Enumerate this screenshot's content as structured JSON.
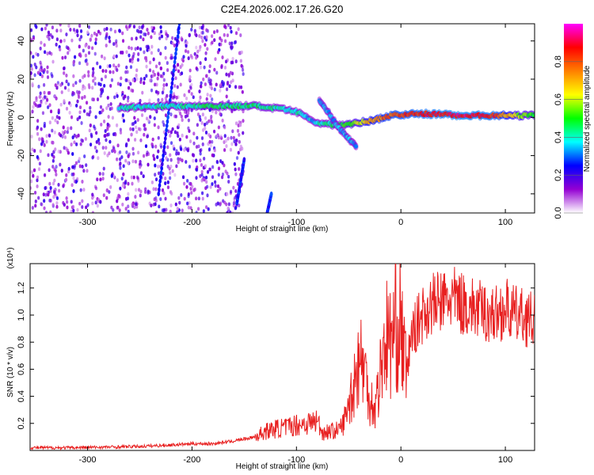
{
  "chart_data": [
    {
      "type": "heatmap",
      "title": "C2E4.2026.002.17.26.G20",
      "xlabel": "Height of straight line (km)",
      "ylabel": "Frequency (Hz)",
      "xlim": [
        -355,
        128
      ],
      "ylim": [
        -50,
        49
      ],
      "x_ticks": [
        -300,
        -200,
        -100,
        0,
        100
      ],
      "x_tick_labels": [
        "-300",
        "-200",
        "-100",
        "0",
        "100"
      ],
      "y_ticks": [
        -40,
        -20,
        0,
        20,
        40
      ],
      "y_tick_labels": [
        "-40",
        "-20",
        "0",
        "20",
        "40"
      ],
      "colorbar": {
        "label": "Normalized spectral amplitude",
        "range": [
          0,
          1
        ],
        "ticks": [
          0.0,
          0.2,
          0.4,
          0.6,
          0.8
        ],
        "tick_labels": [
          "0.0",
          "0.2",
          "0.4",
          "0.6",
          "0.8"
        ],
        "colors": [
          "#ffffff",
          "#9400d3",
          "#0000ff",
          "#00ffff",
          "#00ff00",
          "#ffff00",
          "#ff8000",
          "#ff0000",
          "#ff00ff"
        ]
      },
      "features": [
        {
          "kind": "noise_region",
          "x_range": [
            -355,
            -150
          ],
          "amplitude": 0.15
        },
        {
          "kind": "diagonal_streak",
          "x": [
            -232,
            -212
          ],
          "y": [
            -40,
            49
          ],
          "amplitude": 0.2
        },
        {
          "kind": "diagonal_streak",
          "x": [
            -157,
            -150
          ],
          "y": [
            -45,
            -22
          ],
          "amplitude": 0.2
        },
        {
          "kind": "diagonal_streak",
          "x": [
            -128,
            -124
          ],
          "y": [
            -50,
            -40
          ],
          "amplitude": 0.2
        },
        {
          "kind": "main_track",
          "x": [
            -270,
            -220,
            -180,
            -140,
            -110,
            -95,
            -85,
            -80,
            -60,
            -45,
            -30,
            -10,
            20,
            60,
            90,
            110,
            128
          ],
          "y": [
            5,
            6,
            6,
            6,
            4,
            2,
            -2,
            -3,
            -4,
            -3,
            -2,
            1,
            2,
            1,
            1,
            1,
            1
          ],
          "amplitude": [
            0.4,
            0.4,
            0.45,
            0.45,
            0.4,
            0.4,
            0.35,
            0.4,
            0.45,
            0.55,
            0.7,
            0.8,
            0.85,
            0.9,
            0.85,
            0.6,
            0.5
          ]
        },
        {
          "kind": "side_track",
          "x": [
            -78,
            -70,
            -60,
            -50,
            -42
          ],
          "y": [
            9,
            3,
            -5,
            -11,
            -16
          ],
          "amplitude": 0.35
        }
      ]
    },
    {
      "type": "line",
      "xlabel": "Height of straight line (km)",
      "ylabel": "SNR (10 * v/v)",
      "y_multiplier_label": "(x10⁴)",
      "xlim": [
        -355,
        128
      ],
      "ylim": [
        0,
        1.38
      ],
      "x_ticks": [
        -300,
        -200,
        -100,
        0,
        100
      ],
      "x_tick_labels": [
        "-300",
        "-200",
        "-100",
        "0",
        "100"
      ],
      "y_ticks": [
        0.2,
        0.4,
        0.6,
        0.8,
        1.0,
        1.2
      ],
      "y_tick_labels": [
        "0.2",
        "0.4",
        "0.6",
        "0.8",
        "1.0",
        "1.2"
      ],
      "series": [
        {
          "color": "#e82020",
          "x": [
            -355,
            -320,
            -280,
            -250,
            -220,
            -200,
            -180,
            -160,
            -140,
            -130,
            -120,
            -110,
            -100,
            -90,
            -80,
            -75,
            -70,
            -60,
            -55,
            -50,
            -45,
            -40,
            -35,
            -30,
            -25,
            -20,
            -15,
            -10,
            -5,
            0,
            5,
            10,
            20,
            30,
            40,
            50,
            60,
            70,
            80,
            90,
            100,
            110,
            120,
            128
          ],
          "y": [
            0.02,
            0.02,
            0.025,
            0.03,
            0.04,
            0.05,
            0.05,
            0.07,
            0.1,
            0.14,
            0.16,
            0.17,
            0.19,
            0.2,
            0.22,
            0.13,
            0.14,
            0.15,
            0.2,
            0.35,
            0.5,
            0.7,
            0.6,
            0.4,
            0.3,
            0.55,
            0.85,
            0.8,
            0.9,
            0.95,
            0.55,
            0.85,
            1.0,
            1.08,
            1.1,
            1.12,
            1.08,
            1.05,
            1.02,
            1.0,
            1.05,
            1.0,
            0.98,
            0.95
          ]
        }
      ]
    }
  ]
}
